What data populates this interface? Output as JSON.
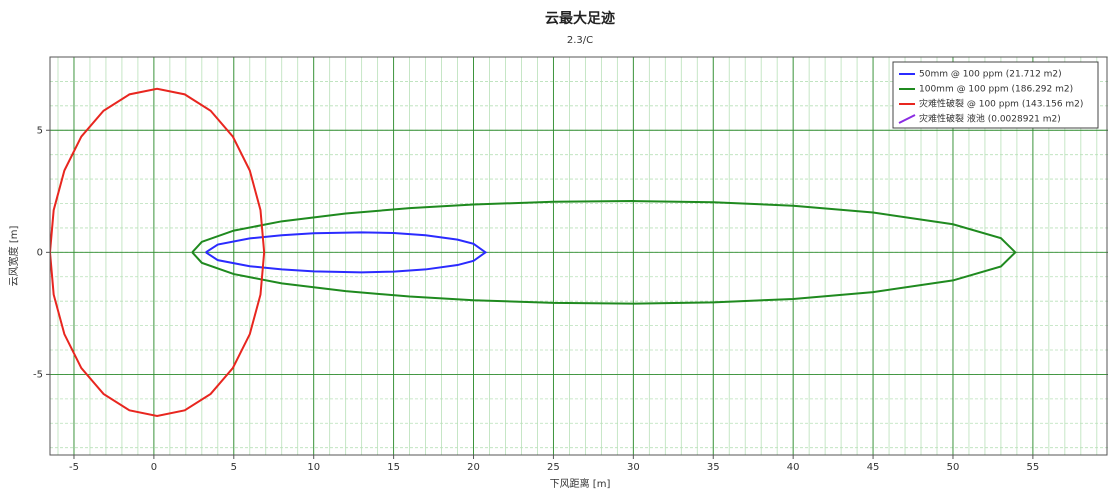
{
  "chart_data": {
    "type": "line",
    "title": "云最大足迹",
    "subtitle": "2.3/C",
    "x_label": "下风距离 [m]",
    "y_label": "云风宽度 [m]",
    "xlim": [
      -6.5,
      59.7
    ],
    "ylim": [
      -8.3,
      8.0
    ],
    "xticks": [
      -5,
      0,
      5,
      10,
      15,
      20,
      25,
      30,
      35,
      40,
      45,
      50,
      55
    ],
    "yticks": [
      -5,
      0,
      5
    ],
    "grid": true,
    "minor_grid": true,
    "legend": "upper right",
    "series": [
      {
        "name": "50mm @ 100 ppm (21.712 m2)",
        "color": "#2b2bff",
        "x": [
          3.25,
          4,
          6,
          8,
          10,
          13,
          15,
          17,
          19,
          20,
          20.75,
          20,
          19,
          17,
          15,
          13,
          10,
          8,
          6,
          4,
          3.25
        ],
        "values": [
          0,
          0.32,
          0.57,
          0.7,
          0.78,
          0.82,
          0.79,
          0.7,
          0.52,
          0.35,
          0,
          -0.35,
          -0.52,
          -0.7,
          -0.79,
          -0.82,
          -0.78,
          -0.7,
          -0.57,
          -0.32,
          0
        ]
      },
      {
        "name": "100mm @ 100 ppm (186.292 m2)",
        "color": "#1f8a1f",
        "x": [
          2.4,
          3,
          5,
          8,
          12,
          16,
          20,
          25,
          30,
          35,
          40,
          45,
          50,
          53,
          53.9,
          53,
          50,
          45,
          40,
          35,
          30,
          25,
          20,
          16,
          12,
          8,
          5,
          3,
          2.4
        ],
        "values": [
          0,
          0.43,
          0.89,
          1.27,
          1.59,
          1.81,
          1.96,
          2.07,
          2.1,
          2.05,
          1.91,
          1.63,
          1.15,
          0.58,
          0,
          -0.58,
          -1.15,
          -1.63,
          -1.91,
          -2.05,
          -2.1,
          -2.07,
          -1.96,
          -1.81,
          -1.59,
          -1.27,
          -0.89,
          -0.43,
          0
        ]
      },
      {
        "name": "灾难性破裂 @ 100 ppm (143.156 m2)",
        "color": "#e8261f",
        "x": [
          6.9,
          6.67,
          6.0,
          4.94,
          3.55,
          1.93,
          0.2,
          -1.53,
          -3.15,
          -4.54,
          -5.6,
          -6.27,
          -6.5,
          -6.27,
          -5.6,
          -4.54,
          -3.15,
          -1.53,
          0.2,
          1.93,
          3.55,
          4.94,
          6.0,
          6.67,
          6.9
        ],
        "values": [
          0,
          1.73,
          3.35,
          4.74,
          5.8,
          6.47,
          6.7,
          6.47,
          5.8,
          4.74,
          3.35,
          1.73,
          0,
          -1.73,
          -3.35,
          -4.74,
          -5.8,
          -6.47,
          -6.7,
          -6.47,
          -5.8,
          -4.74,
          -3.35,
          -1.73,
          0
        ]
      },
      {
        "name": "灾难性破裂 液池 (0.0028921 m2)",
        "color": "#8a2be2",
        "x": [],
        "values": []
      }
    ]
  }
}
